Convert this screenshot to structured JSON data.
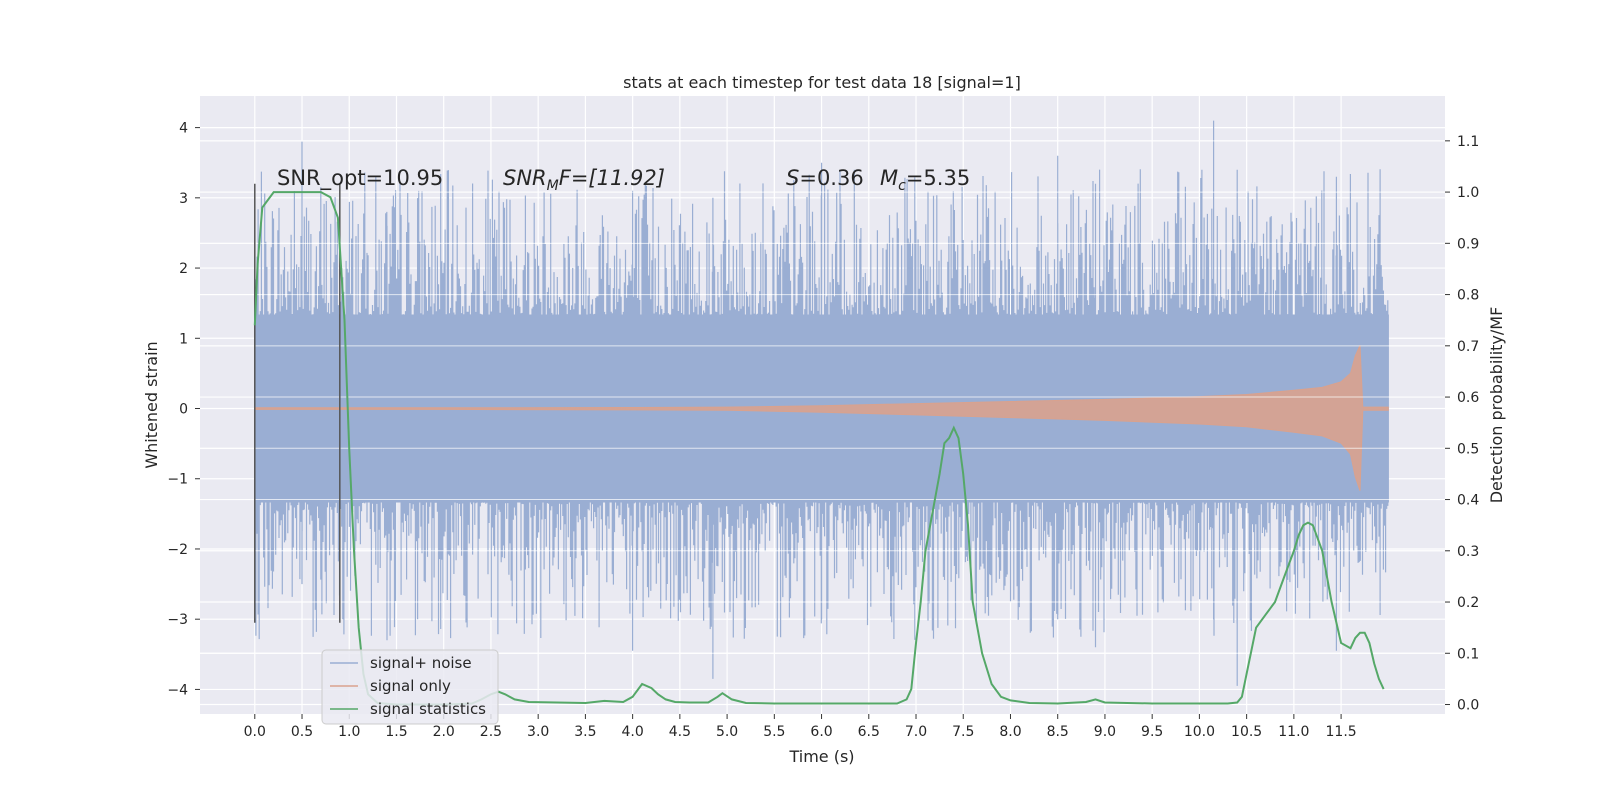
{
  "chart_data": {
    "type": "line",
    "title": "stats at each timestep for test data 18 [signal=1]",
    "xlabel": "Time (s)",
    "ylabel": "Whitened strain",
    "y2label": "Detection probability/MF",
    "xlim": [
      -0.58,
      12.6
    ],
    "ylim": [
      -4.35,
      4.45
    ],
    "y2lim": [
      -0.0185,
      1.1875
    ],
    "x_ticks": [
      "0.0",
      "0.5",
      "1.0",
      "1.5",
      "2.0",
      "2.5",
      "3.0",
      "3.5",
      "4.0",
      "4.5",
      "5.0",
      "5.5",
      "6.0",
      "6.5",
      "7.0",
      "7.5",
      "8.0",
      "8.5",
      "9.0",
      "9.5",
      "10.0",
      "10.5",
      "11.0",
      "11.5"
    ],
    "y_ticks": [
      "4",
      "3",
      "2",
      "1",
      "0",
      "−1",
      "−2",
      "−3",
      "−4"
    ],
    "y2_ticks": [
      "1.1",
      "1.0",
      "0.9",
      "0.8",
      "0.7",
      "0.6",
      "0.5",
      "0.4",
      "0.3",
      "0.2",
      "0.1",
      "0.0"
    ],
    "grid": true,
    "legend_position": "lower-left",
    "annotations": {
      "snr_opt": "SNR_opt=10.95",
      "snr_mf_sym": "SNR",
      "snr_mf_sub": "M",
      "snr_mf_tail": "F=[11.92]",
      "s_sym": "S",
      "s_val": "=0.36",
      "mc_sym": "M",
      "mc_sub": "c",
      "mc_val": "=5.35"
    },
    "vlines_x": [
      0.0,
      0.9
    ],
    "vlines_range": [
      -3.05,
      3.2
    ],
    "series": [
      {
        "name": "signal+ noise",
        "color": "#9aaed3",
        "kind": "noise-band",
        "x_range": [
          0.0,
          12.0
        ],
        "core_amplitude": 1.33,
        "spike_max": 4.1,
        "spike_min": -3.95
      },
      {
        "name": "signal only",
        "color": "#d9a28e",
        "kind": "chirp-envelope",
        "envelope_x": [
          0.0,
          2.0,
          4.0,
          5.0,
          6.0,
          7.0,
          8.0,
          9.0,
          10.0,
          10.5,
          11.0,
          11.3,
          11.5,
          11.6,
          11.65,
          11.7,
          11.73,
          12.0
        ],
        "envelope_y": [
          0.01,
          0.01,
          0.015,
          0.02,
          0.04,
          0.07,
          0.1,
          0.13,
          0.17,
          0.2,
          0.26,
          0.3,
          0.38,
          0.5,
          0.75,
          0.9,
          0.02,
          0.02
        ]
      },
      {
        "name": "signal statistics",
        "color": "#55a868",
        "axis": "right",
        "x": [
          0.0,
          0.03,
          0.08,
          0.2,
          0.3,
          0.5,
          0.7,
          0.8,
          0.88,
          0.95,
          1.0,
          1.05,
          1.1,
          1.15,
          1.2,
          1.3,
          1.5,
          2.0,
          2.3,
          2.4,
          2.5,
          2.58,
          2.65,
          2.75,
          2.9,
          3.2,
          3.5,
          3.7,
          3.9,
          4.0,
          4.1,
          4.2,
          4.27,
          4.35,
          4.45,
          4.6,
          4.8,
          4.9,
          4.95,
          5.05,
          5.2,
          5.5,
          6.0,
          6.5,
          6.8,
          6.9,
          6.95,
          7.0,
          7.05,
          7.1,
          7.15,
          7.2,
          7.25,
          7.3,
          7.35,
          7.4,
          7.45,
          7.5,
          7.55,
          7.6,
          7.7,
          7.8,
          7.9,
          8.0,
          8.2,
          8.5,
          8.8,
          8.9,
          9.0,
          9.5,
          10.0,
          10.3,
          10.4,
          10.45,
          10.5,
          10.6,
          10.7,
          10.8,
          10.9,
          11.0,
          11.05,
          11.1,
          11.15,
          11.2,
          11.3,
          11.4,
          11.5,
          11.6,
          11.65,
          11.7,
          11.75,
          11.8,
          11.85,
          11.9,
          11.95
        ],
        "y": [
          0.74,
          0.86,
          0.97,
          1.0,
          1.0,
          1.0,
          1.0,
          0.99,
          0.95,
          0.75,
          0.5,
          0.3,
          0.15,
          0.06,
          0.02,
          0.003,
          0.0,
          0.0,
          0.002,
          0.01,
          0.02,
          0.025,
          0.02,
          0.01,
          0.005,
          0.004,
          0.003,
          0.007,
          0.005,
          0.015,
          0.04,
          0.032,
          0.02,
          0.01,
          0.005,
          0.004,
          0.004,
          0.015,
          0.022,
          0.01,
          0.003,
          0.002,
          0.002,
          0.002,
          0.002,
          0.01,
          0.03,
          0.12,
          0.2,
          0.3,
          0.35,
          0.4,
          0.45,
          0.51,
          0.52,
          0.54,
          0.52,
          0.45,
          0.35,
          0.2,
          0.1,
          0.04,
          0.015,
          0.008,
          0.003,
          0.002,
          0.005,
          0.01,
          0.004,
          0.002,
          0.002,
          0.002,
          0.004,
          0.015,
          0.06,
          0.15,
          0.175,
          0.2,
          0.25,
          0.3,
          0.33,
          0.35,
          0.355,
          0.35,
          0.3,
          0.2,
          0.12,
          0.11,
          0.13,
          0.14,
          0.14,
          0.12,
          0.08,
          0.05,
          0.03
        ]
      }
    ]
  }
}
